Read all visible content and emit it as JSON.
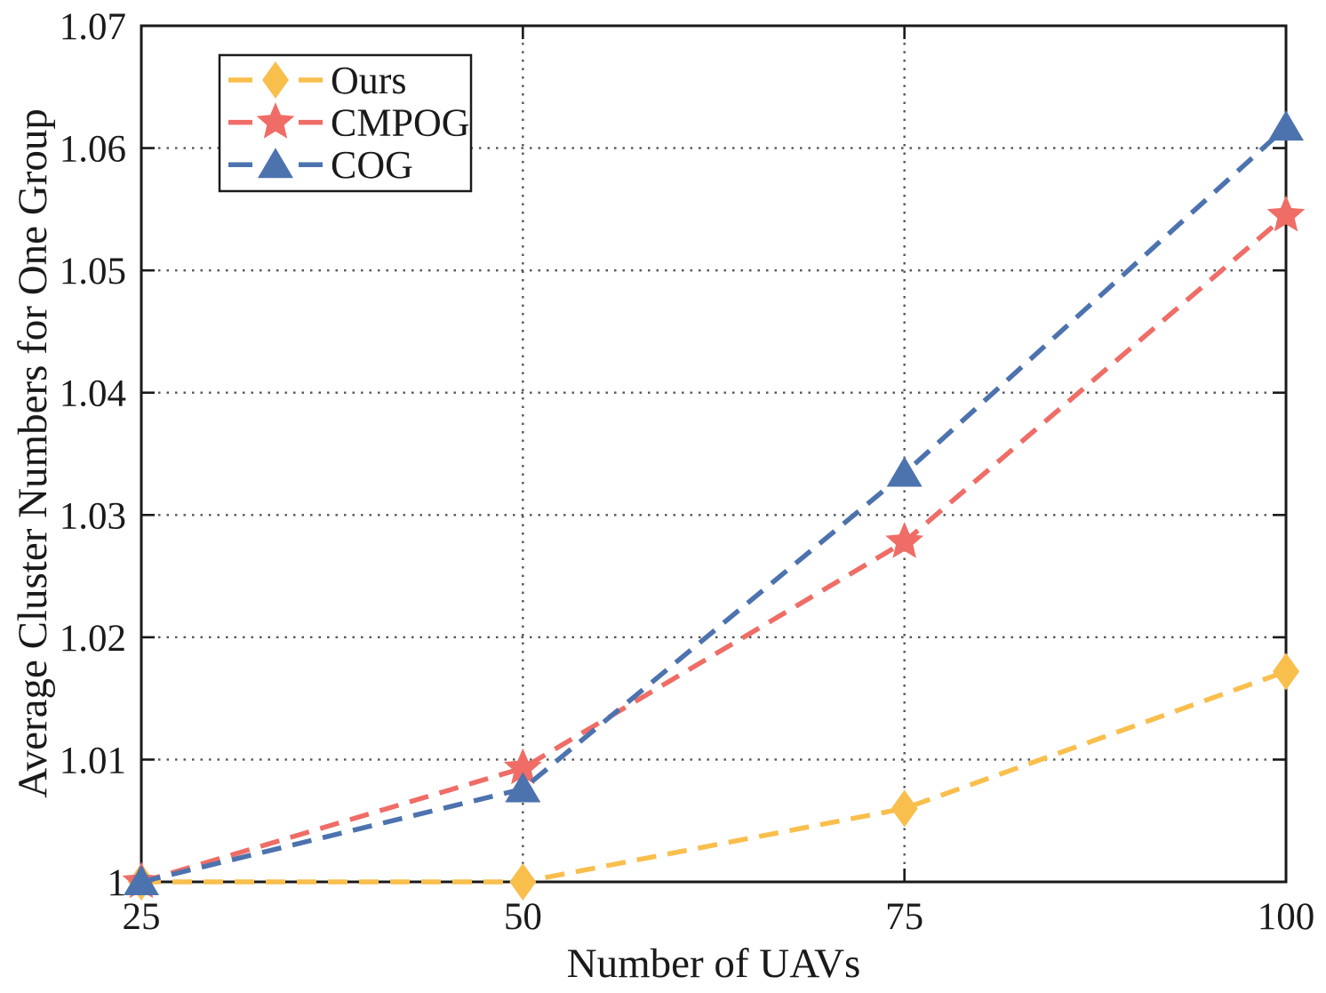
{
  "figure": {
    "background": "#ffffff"
  },
  "style": {
    "grid_color": "#555555",
    "axis_color": "#1a1a1a",
    "text_color": "#1a1a1a"
  },
  "chart_data": {
    "type": "line",
    "title": "",
    "xlabel": "Number of UAVs",
    "ylabel": "Average Cluster Numbers for One Group",
    "x": [
      25,
      50,
      75,
      100
    ],
    "xticks": [
      25,
      50,
      75,
      100
    ],
    "xtick_labels": [
      "25",
      "50",
      "75",
      "100"
    ],
    "yticks": [
      1,
      1.01,
      1.02,
      1.03,
      1.04,
      1.05,
      1.06,
      1.07
    ],
    "ytick_labels": [
      "1",
      "1.01",
      "1.02",
      "1.03",
      "1.04",
      "1.05",
      "1.06",
      "1.07"
    ],
    "xlim": [
      25,
      100
    ],
    "ylim": [
      1,
      1.07
    ],
    "grid": "dotted",
    "line_style": "dashed",
    "legend_position": "upper-left-inside",
    "series": [
      {
        "name": "Ours",
        "marker": "diamond",
        "color": "#F9BF4D",
        "values": [
          1,
          1,
          1.006,
          1.0172
        ]
      },
      {
        "name": "CMPOG",
        "marker": "star",
        "color": "#EF6D66",
        "values": [
          1,
          1.0093,
          1.0278,
          1.0545
        ]
      },
      {
        "name": "COG",
        "marker": "triangle",
        "color": "#4C73AE",
        "values": [
          1,
          1.0076,
          1.0334,
          1.0617
        ]
      }
    ]
  }
}
